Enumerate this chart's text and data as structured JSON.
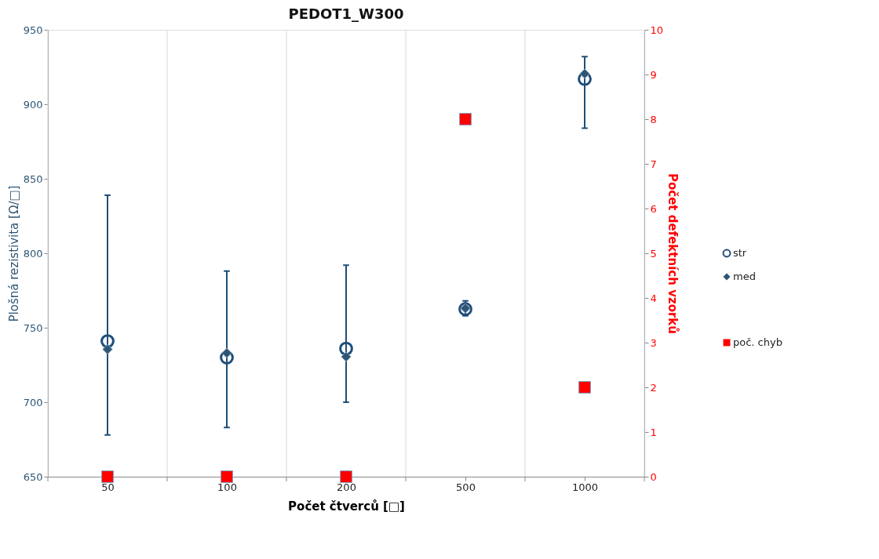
{
  "chart_data": {
    "type": "scatter",
    "title": "PEDOT1_W300",
    "xlabel": "Počet čtverců [□]",
    "ylabel": "Plošná rezistivita [Ω/□]",
    "y2label": "Počet defektních vzorků",
    "categories": [
      "50",
      "100",
      "200",
      "500",
      "1000"
    ],
    "series": [
      {
        "name": "str",
        "color": "#1f4e79",
        "marker": "circle",
        "values": [
          741,
          730,
          736,
          762.5,
          917
        ],
        "errors": [
          [
            678,
            839
          ],
          [
            683,
            788
          ],
          [
            700,
            792
          ],
          [
            758,
            768
          ],
          [
            884,
            932
          ]
        ]
      },
      {
        "name": "med",
        "color": "#2e5572",
        "marker": "diamond",
        "values": [
          735.5,
          733,
          730.5,
          763,
          920.5
        ]
      },
      {
        "name": "poč. chyb",
        "color": "#ff0000",
        "marker": "square",
        "axis": "y2",
        "values": [
          0,
          0,
          0,
          8,
          2
        ]
      }
    ],
    "ylim": [
      650,
      950
    ],
    "yticks": [
      650,
      700,
      750,
      800,
      850,
      900,
      950
    ],
    "y2lim": [
      0,
      10
    ],
    "y2ticks": [
      0,
      1,
      2,
      3,
      4,
      5,
      6,
      7,
      8,
      9,
      10
    ],
    "grid": "x",
    "legend": "right"
  }
}
